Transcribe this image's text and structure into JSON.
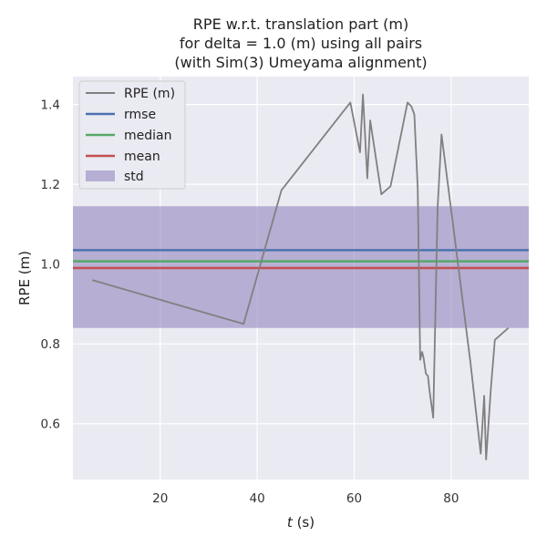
{
  "chart_data": {
    "type": "line",
    "title_lines": [
      "RPE w.r.t. translation part (m)",
      "for delta = 1.0 (m) using all pairs",
      "(with Sim(3) Umeyama alignment)"
    ],
    "xlabel_italic": "t",
    "xlabel_rest": " (s)",
    "ylabel": "RPE (m)",
    "xlim": [
      2,
      96
    ],
    "ylim": [
      0.46,
      1.47
    ],
    "xticks": [
      20,
      40,
      60,
      80
    ],
    "yticks": [
      0.6,
      0.8,
      1.0,
      1.2,
      1.4
    ],
    "ytick_labels": [
      "0.6",
      "0.8",
      "1.0",
      "1.2",
      "1.4"
    ],
    "xtick_labels": [
      "20",
      "40",
      "60",
      "80"
    ],
    "grid": true,
    "legend_position": "top-left",
    "series": [
      {
        "name": "RPE (m)",
        "color": "#808080",
        "x": [
          6,
          37.2,
          45,
          59.2,
          61.2,
          61.8,
          62.7,
          63.3,
          65.6,
          67.5,
          71.0,
          71.8,
          72.4,
          73.1,
          73.6,
          74.0,
          74.3,
          74.8,
          75.2,
          75.5,
          76.3,
          77.2,
          78.0,
          81.0,
          84.0,
          86.1,
          86.8,
          87.2,
          88.2,
          89.0,
          91.8
        ],
        "y": [
          0.96,
          0.85,
          1.185,
          1.405,
          1.28,
          1.425,
          1.215,
          1.36,
          1.175,
          1.195,
          1.405,
          1.395,
          1.375,
          1.19,
          0.76,
          0.78,
          0.765,
          0.725,
          0.72,
          0.685,
          0.615,
          1.14,
          1.325,
          1.04,
          0.75,
          0.525,
          0.67,
          0.51,
          0.69,
          0.81,
          0.84
        ]
      },
      {
        "name": "rmse",
        "color": "#4C72B0",
        "value": 1.035
      },
      {
        "name": "median",
        "color": "#55A868",
        "value": 1.007
      },
      {
        "name": "mean",
        "color": "#C44E52",
        "value": 0.99
      },
      {
        "name": "std",
        "color": "#8172B3",
        "range": [
          0.84,
          1.145
        ]
      }
    ]
  }
}
